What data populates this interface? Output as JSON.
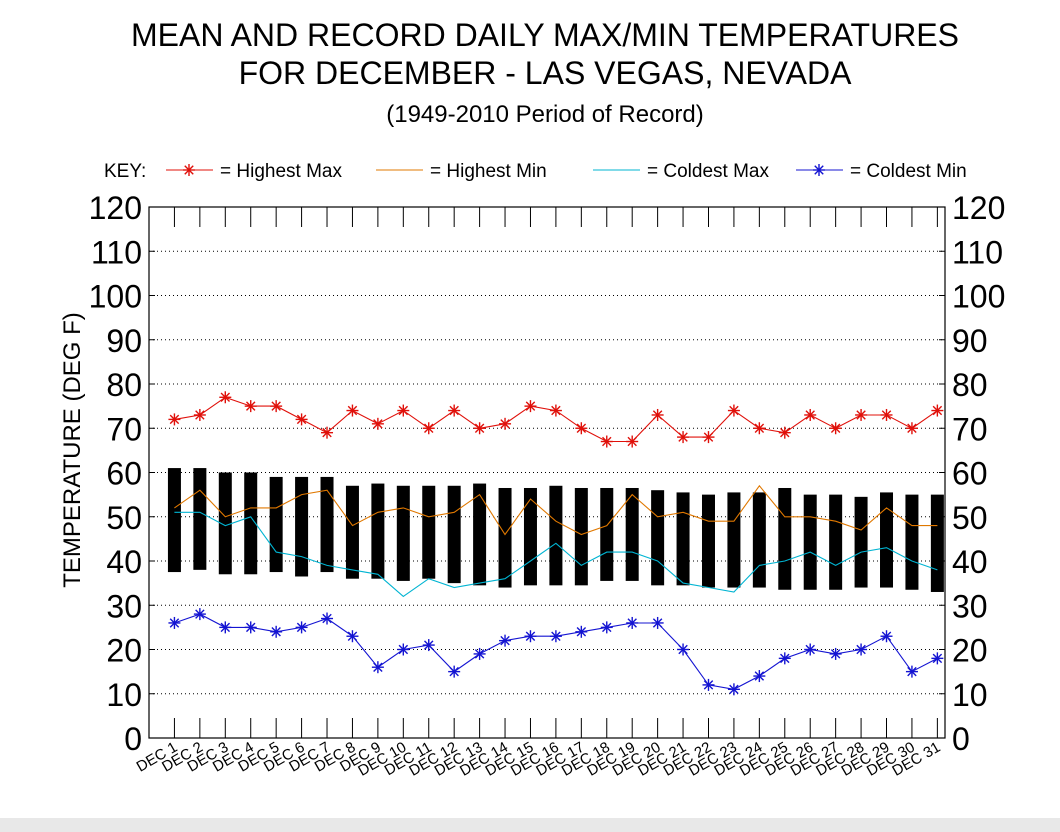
{
  "chart_data": {
    "type": "line",
    "title_line1": "MEAN AND RECORD DAILY MAX/MIN TEMPERATURES",
    "title_line2": "FOR DECEMBER - LAS VEGAS, NEVADA",
    "subtitle": "(1949-2010 Period of Record)",
    "ylabel": "TEMPERATURE (DEG F)",
    "ylim": [
      0,
      120
    ],
    "yticks": [
      "0",
      "10",
      "20",
      "30",
      "40",
      "50",
      "60",
      "70",
      "80",
      "90",
      "100",
      "110",
      "120"
    ],
    "grid": "horizontal dotted",
    "legend_placement": "top",
    "key_label": "KEY:",
    "categories": [
      "DEC 1",
      "DEC 2",
      "DEC 3",
      "DEC 4",
      "DEC 5",
      "DEC 6",
      "DEC 7",
      "DEC 8",
      "DEC 9",
      "DEC 10",
      "DEC 11",
      "DEC 12",
      "DEC 13",
      "DEC 14",
      "DEC 15",
      "DEC 16",
      "DEC 17",
      "DEC 18",
      "DEC 19",
      "DEC 20",
      "DEC 21",
      "DEC 22",
      "DEC 23",
      "DEC 24",
      "DEC 25",
      "DEC 26",
      "DEC 27",
      "DEC 28",
      "DEC 29",
      "DEC 30",
      "DEC 31"
    ],
    "mean_bars": {
      "color": "#000000",
      "mean_max": [
        61,
        61,
        60,
        60,
        59,
        59,
        59,
        57,
        57.5,
        57,
        57,
        57,
        57.5,
        56.5,
        56.5,
        57,
        56.5,
        56.5,
        56.5,
        56,
        55.5,
        55,
        55.5,
        55.5,
        56.5,
        55,
        55,
        54.5,
        55.5,
        55,
        55
      ],
      "mean_min": [
        37.5,
        38,
        37,
        37,
        37.5,
        36.5,
        37.5,
        36,
        36,
        35.5,
        36,
        35,
        34.5,
        34,
        34.5,
        34.5,
        34.5,
        35.5,
        35.5,
        34.5,
        34.5,
        34,
        34,
        34,
        33.5,
        33.5,
        33.5,
        34,
        34,
        33.5,
        33
      ]
    },
    "series": [
      {
        "name": "= Highest Max",
        "color": "#e0100a",
        "marker": "star",
        "values": [
          72,
          73,
          77,
          75,
          75,
          72,
          69,
          74,
          71,
          74,
          70,
          74,
          70,
          71,
          75,
          74,
          70,
          67,
          67,
          73,
          68,
          68,
          74,
          70,
          69,
          73,
          70,
          73,
          73,
          70,
          74
        ]
      },
      {
        "name": "= Highest Min",
        "color": "#e07800",
        "marker": "none",
        "values": [
          52,
          56,
          50,
          52,
          52,
          55,
          56,
          48,
          51,
          52,
          50,
          51,
          55,
          46,
          54,
          49,
          46,
          48,
          55,
          50,
          51,
          49,
          49,
          57,
          50,
          50,
          49,
          47,
          52,
          48,
          48
        ]
      },
      {
        "name": "= Coldest Max",
        "color": "#00b4d2",
        "marker": "none",
        "values": [
          51,
          51,
          48,
          50,
          42,
          41,
          39,
          38,
          37,
          32,
          36,
          34,
          35,
          36,
          40,
          44,
          39,
          42,
          42,
          40,
          35,
          34,
          33,
          39,
          40,
          42,
          39,
          42,
          43,
          40,
          38
        ]
      },
      {
        "name": "= Coldest Min",
        "color": "#1414d2",
        "marker": "star",
        "values": [
          26,
          28,
          25,
          25,
          24,
          25,
          27,
          23,
          16,
          20,
          21,
          15,
          19,
          22,
          23,
          23,
          24,
          25,
          26,
          26,
          20,
          12,
          11,
          14,
          18,
          20,
          19,
          20,
          23,
          15,
          18
        ]
      }
    ]
  }
}
